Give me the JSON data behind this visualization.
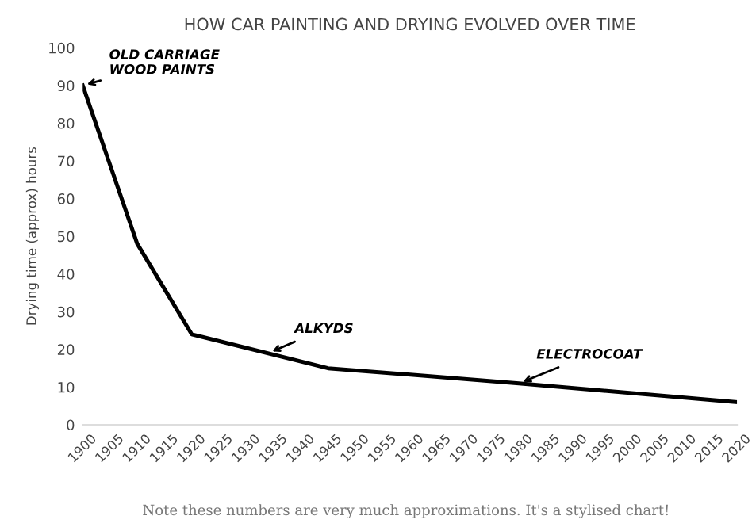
{
  "chart_data": {
    "type": "line",
    "title": "HOW CAR PAINTING AND DRYING EVOLVED OVER TIME",
    "ylabel": "Drying time (approx) hours",
    "x": [
      1900,
      1910,
      1920,
      1945,
      1980,
      2020
    ],
    "series": [
      {
        "color": "#000000",
        "values": [
          90,
          48,
          24,
          15,
          11,
          6
        ]
      }
    ],
    "xlim": [
      1900,
      2020
    ],
    "xticks": [
      1900,
      1905,
      1910,
      1915,
      1920,
      1925,
      1930,
      1935,
      1940,
      1945,
      1950,
      1955,
      1960,
      1965,
      1970,
      1975,
      1980,
      1985,
      1990,
      1995,
      2000,
      2005,
      2010,
      2015,
      2020
    ],
    "ylim": [
      0,
      100
    ],
    "yticks": [
      0,
      10,
      20,
      30,
      40,
      50,
      60,
      70,
      80,
      90,
      100
    ],
    "grid": false,
    "legend": false,
    "annotations": [
      {
        "text": "OLD CARRIAGE\nWOOD PAINTS",
        "x": 1900,
        "y": 90
      },
      {
        "text": "ALKYDS",
        "x": 1934,
        "y": 19
      },
      {
        "text": "ELECTROCOAT",
        "x": 1980,
        "y": 11
      },
      "Note these numbers are very much approximations. It's a stylised chart!"
    ]
  }
}
